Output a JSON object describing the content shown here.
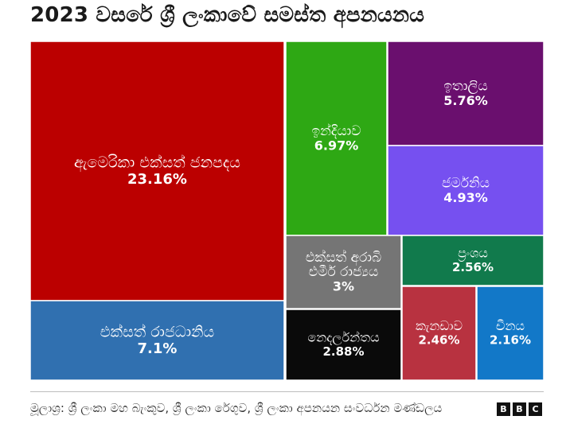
{
  "title": "2023 වසරේ ශ්‍රී ලංකාවේ සමස්ත අපනයනය",
  "source": "මූලාශ්‍ර: ශ්‍රී ලංකා මහ බැංකුව, ශ්‍රී ලංකා රේගුව, ශ්‍රී ලංකා අපනයන සංවර්ධන මණ්ඩලය",
  "logo": [
    "B",
    "B",
    "C"
  ],
  "chart_data": {
    "type": "treemap",
    "title": "2023 වසරේ ශ්‍රී ලංකාවේ සමස්ත අපනයනය",
    "items": [
      {
        "name": "ඇමෙරිකා එක්සත් ජනපදය",
        "value": 23.16,
        "label": "23.16%",
        "color": "#bb0000"
      },
      {
        "name": "එක්සත් රාජධානිය",
        "value": 7.1,
        "label": "7.1%",
        "color": "#3070b0"
      },
      {
        "name": "ඉන්දියාව",
        "value": 6.97,
        "label": "6.97%",
        "color": "#2ea814"
      },
      {
        "name": "ඉතාලිය",
        "value": 5.76,
        "label": "5.76%",
        "color": "#6a0f6e"
      },
      {
        "name": "ජර්මනිය",
        "value": 4.93,
        "label": "4.93%",
        "color": "#7650f0"
      },
      {
        "name": "එක්සත් අරාබි එමීර් රාජ්‍යය",
        "value": 3,
        "label": "3%",
        "color": "#757575"
      },
      {
        "name": "නෙදර්ලන්තය",
        "value": 2.88,
        "label": "2.88%",
        "color": "#0a0a0a"
      },
      {
        "name": "ප්‍රංශය",
        "value": 2.56,
        "label": "2.56%",
        "color": "#117a4c"
      },
      {
        "name": "කැනඩාව",
        "value": 2.46,
        "label": "2.46%",
        "color": "#b83240"
      },
      {
        "name": "චීනය",
        "value": 2.16,
        "label": "2.16%",
        "color": "#1278c8"
      }
    ]
  }
}
